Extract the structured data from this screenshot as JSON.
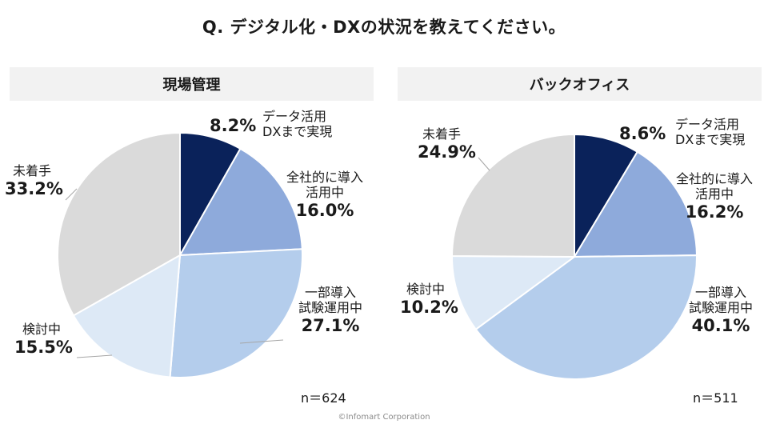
{
  "title": "Q. デジタル化・DXの状況を教えてください。",
  "credit": "©Infomart Corporation",
  "colors": {
    "dx_implemented": "#0a225a",
    "company_wide": "#8eaadb",
    "partial": "#b4cdec",
    "considering": "#dde9f6",
    "not_started": "#dadada",
    "header_bg": "#f2f2f2"
  },
  "chart_data": [
    {
      "type": "pie",
      "title": "現場管理",
      "n_label": "n＝624",
      "slices": [
        {
          "name": "データ活用 DXまで実現",
          "line1": "データ活用",
          "line2": "DXまで実現",
          "value": 8.2,
          "value_label": "8.2%",
          "color": "#0a225a"
        },
        {
          "name": "全社的に導入 活用中",
          "line1": "全社的に導入",
          "line2": "活用中",
          "value": 16.0,
          "value_label": "16.0%",
          "color": "#8eaadb"
        },
        {
          "name": "一部導入 試験運用中",
          "line1": "一部導入",
          "line2": "試験運用中",
          "value": 27.1,
          "value_label": "27.1%",
          "color": "#b4cdec"
        },
        {
          "name": "検討中",
          "line1": "検討中",
          "line2": "",
          "value": 15.5,
          "value_label": "15.5%",
          "color": "#dde9f6"
        },
        {
          "name": "未着手",
          "line1": "未着手",
          "line2": "",
          "value": 33.2,
          "value_label": "33.2%",
          "color": "#dadada"
        }
      ]
    },
    {
      "type": "pie",
      "title": "バックオフィス",
      "n_label": "n＝511",
      "slices": [
        {
          "name": "データ活用 DXまで実現",
          "line1": "データ活用",
          "line2": "DXまで実現",
          "value": 8.6,
          "value_label": "8.6%",
          "color": "#0a225a"
        },
        {
          "name": "全社的に導入 活用中",
          "line1": "全社的に導入",
          "line2": "活用中",
          "value": 16.2,
          "value_label": "16.2%",
          "color": "#8eaadb"
        },
        {
          "name": "一部導入 試験運用中",
          "line1": "一部導入",
          "line2": "試験運用中",
          "value": 40.1,
          "value_label": "40.1%",
          "color": "#b4cdec"
        },
        {
          "name": "検討中",
          "line1": "検討中",
          "line2": "",
          "value": 10.2,
          "value_label": "10.2%",
          "color": "#dde9f6"
        },
        {
          "name": "未着手",
          "line1": "未着手",
          "line2": "",
          "value": 24.9,
          "value_label": "24.9%",
          "color": "#dadada"
        }
      ]
    }
  ]
}
